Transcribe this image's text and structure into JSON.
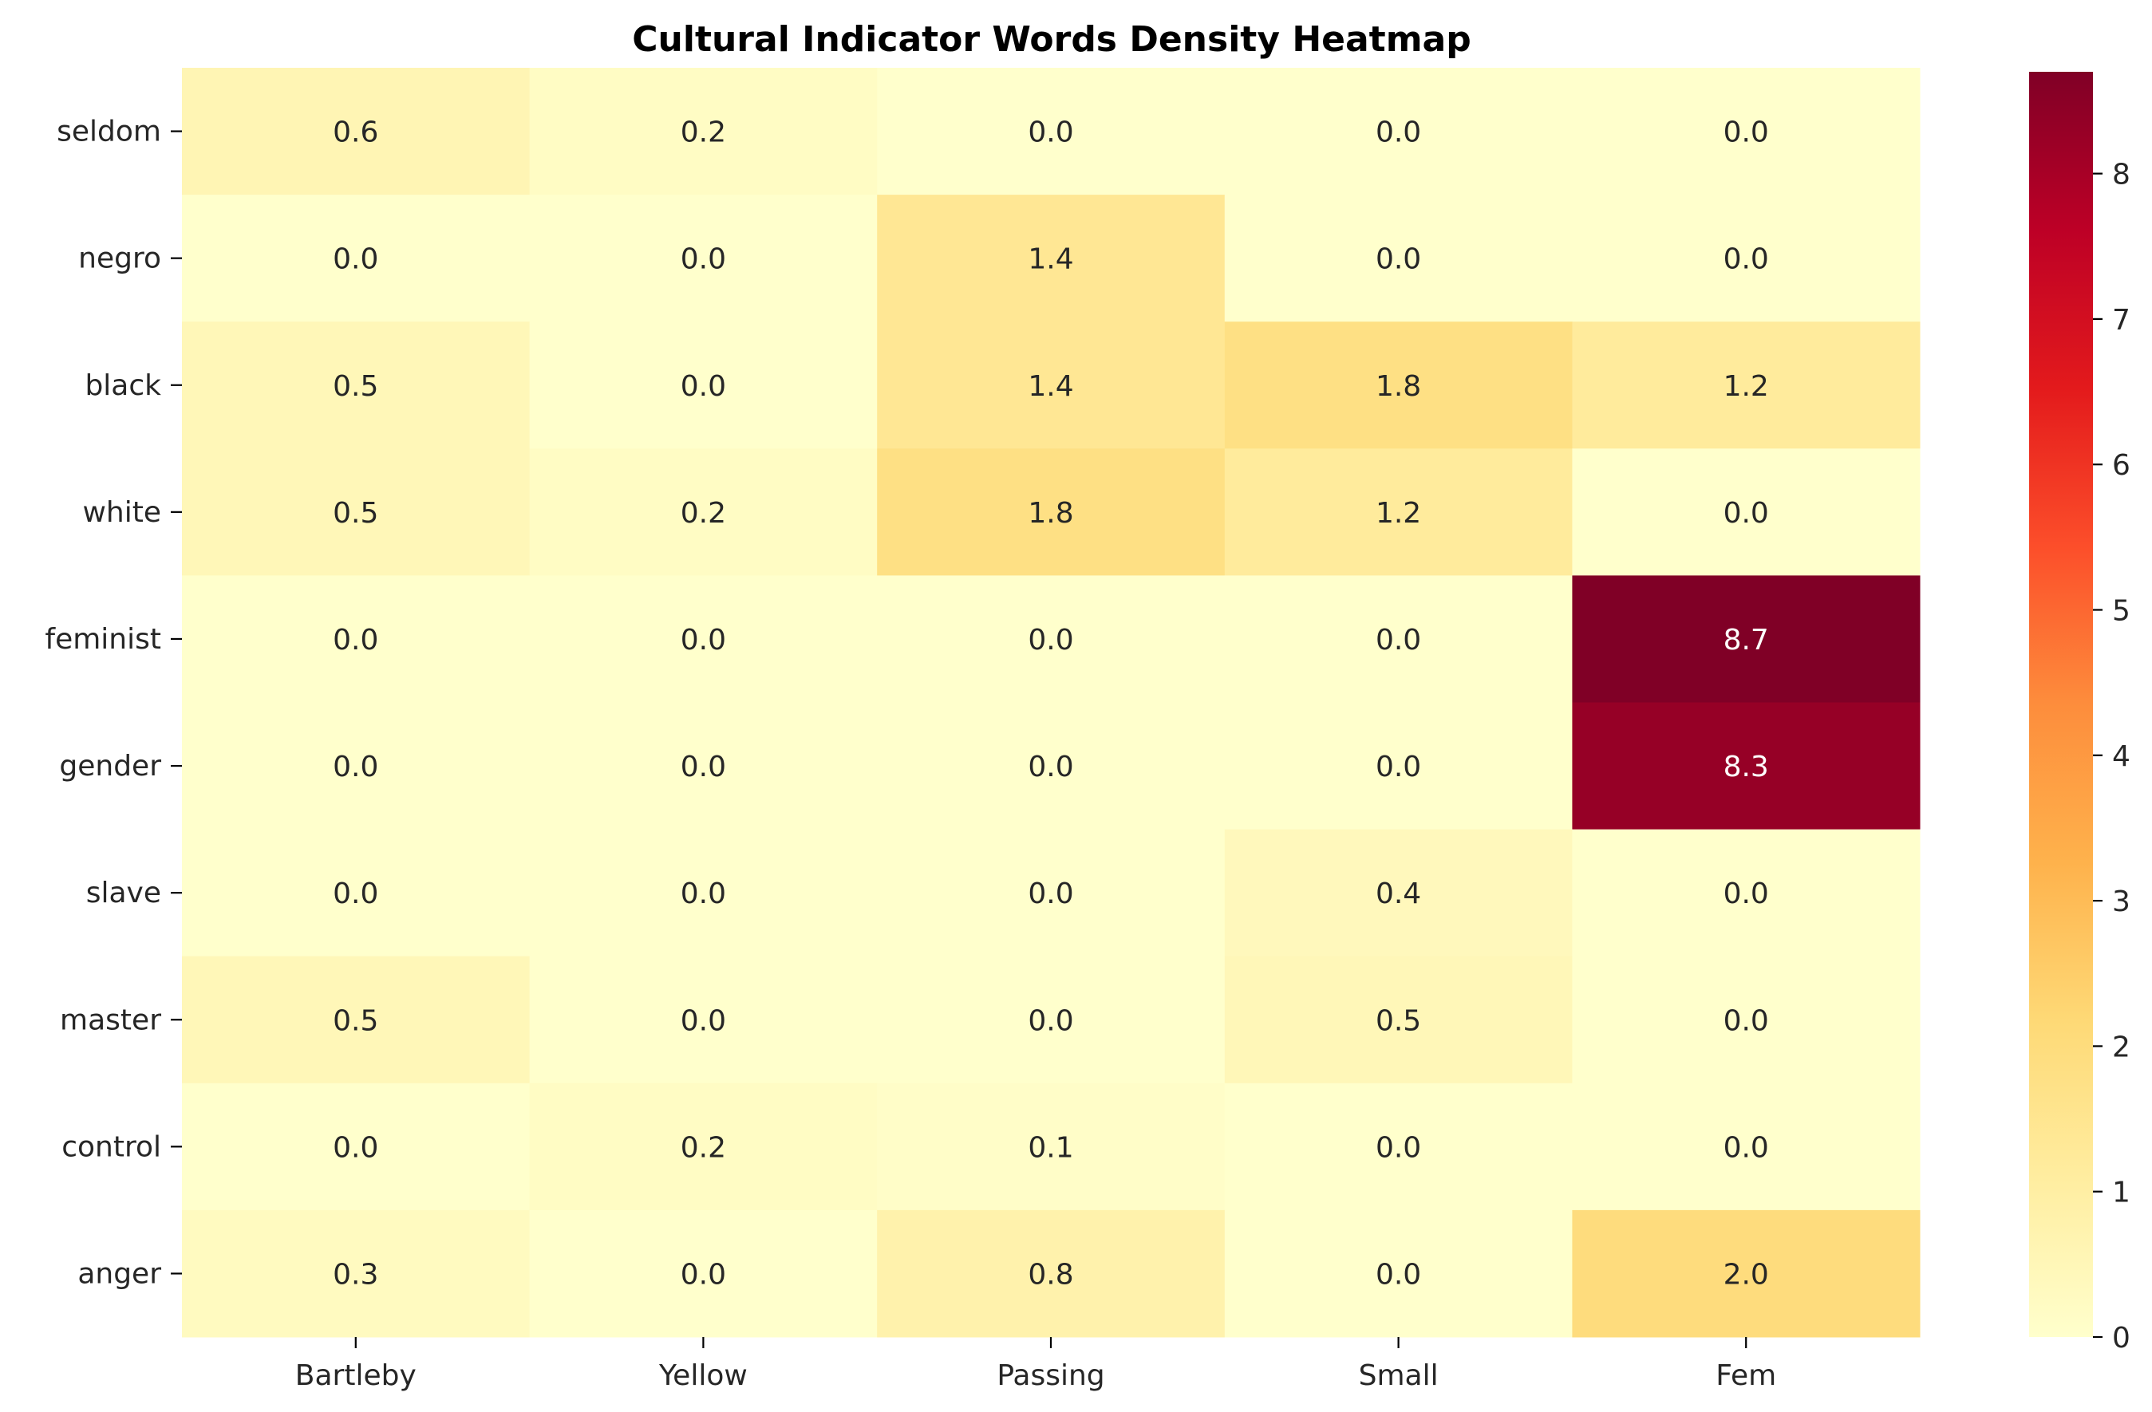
{
  "chart_data": {
    "type": "heatmap",
    "title": "Cultural Indicator Words Density Heatmap",
    "xlabel": "",
    "ylabel": "",
    "x_categories": [
      "Bartleby",
      "Yellow",
      "Passing",
      "Small",
      "Fem"
    ],
    "y_categories": [
      "seldom",
      "negro",
      "black",
      "white",
      "feminist",
      "gender",
      "slave",
      "master",
      "control",
      "anger"
    ],
    "values": [
      [
        0.6,
        0.2,
        0.0,
        0.0,
        0.0
      ],
      [
        0.0,
        0.0,
        1.4,
        0.0,
        0.0
      ],
      [
        0.5,
        0.0,
        1.4,
        1.8,
        1.2
      ],
      [
        0.5,
        0.2,
        1.8,
        1.2,
        0.0
      ],
      [
        0.0,
        0.0,
        0.0,
        0.0,
        8.7
      ],
      [
        0.0,
        0.0,
        0.0,
        0.0,
        8.3
      ],
      [
        0.0,
        0.0,
        0.0,
        0.4,
        0.0
      ],
      [
        0.5,
        0.0,
        0.0,
        0.5,
        0.0
      ],
      [
        0.0,
        0.2,
        0.1,
        0.0,
        0.0
      ],
      [
        0.3,
        0.0,
        0.8,
        0.0,
        2.0
      ]
    ],
    "value_format": "0.0",
    "colormap": "YlOrRd",
    "colorbar": {
      "min": 0,
      "max": 8.7,
      "ticks": [
        0,
        1,
        2,
        3,
        4,
        5,
        6,
        7,
        8
      ]
    },
    "colormap_stops": [
      "#ffffcc",
      "#ffeda0",
      "#fed976",
      "#feb24c",
      "#fd8d3c",
      "#fc4e2a",
      "#e31a1c",
      "#bd0026",
      "#800026"
    ],
    "grid": false,
    "legend": "none"
  }
}
